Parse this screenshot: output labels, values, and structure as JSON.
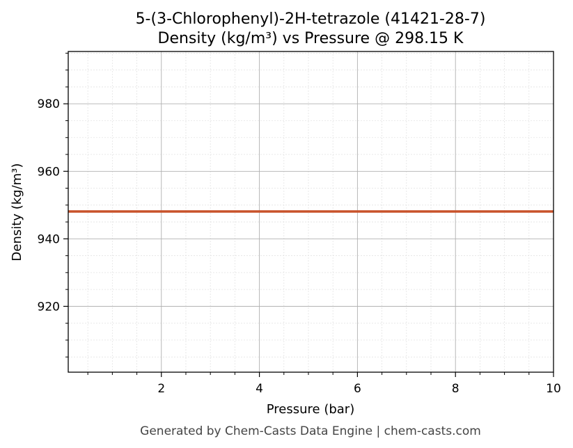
{
  "chart_data": {
    "type": "line",
    "title_line1": "5-(3-Chlorophenyl)-2H-tetrazole (41421-28-7)",
    "title_line2": "Density (kg/m³) vs Pressure @ 298.15 K",
    "xlabel": "Pressure (bar)",
    "ylabel": "Density (kg/m³)",
    "xlim": [
      0.1,
      10
    ],
    "ylim": [
      900.5,
      995.5
    ],
    "x_ticks": [
      2,
      4,
      6,
      8,
      10
    ],
    "x_tick_labels": [
      "2",
      "4",
      "6",
      "8",
      "10"
    ],
    "y_ticks": [
      920,
      940,
      960,
      980
    ],
    "y_tick_labels": [
      "920",
      "940",
      "960",
      "980"
    ],
    "x_minor_step": 0.5,
    "y_minor_step": 5,
    "grid": true,
    "series": [
      {
        "color": "#c8522a",
        "x": [
          0.1,
          10
        ],
        "y": [
          948.1,
          948.1
        ]
      }
    ]
  },
  "footer": "Generated by Chem-Casts Data Engine | chem-casts.com"
}
